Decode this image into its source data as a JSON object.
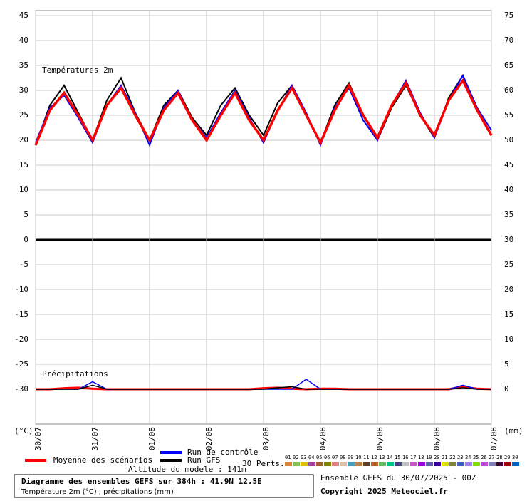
{
  "chart_data": {
    "type": "line",
    "temp_label": "Températures 2m",
    "precip_label": "Précipitations",
    "ylabel": "(°C)",
    "y2label": "(mm)",
    "xlim": [
      0,
      8
    ],
    "xticks": [
      {
        "value": 0,
        "label": "30/07"
      },
      {
        "value": 1,
        "label": "31/07"
      },
      {
        "value": 2,
        "label": "01/08"
      },
      {
        "value": 3,
        "label": "02/08"
      },
      {
        "value": 4,
        "label": "03/08"
      },
      {
        "value": 5,
        "label": "04/08"
      },
      {
        "value": 6,
        "label": "05/08"
      },
      {
        "value": 7,
        "label": "06/08"
      },
      {
        "value": 8,
        "label": "07/08"
      }
    ],
    "ylim": [
      -37,
      46
    ],
    "yticks": [
      45,
      40,
      35,
      30,
      25,
      20,
      15,
      10,
      5,
      0,
      -5,
      -10,
      -15,
      -20,
      -25,
      -30
    ],
    "y2lim": [
      -7,
      76
    ],
    "y2ticks": [
      75,
      70,
      65,
      60,
      55,
      50,
      45,
      40,
      35,
      30,
      25,
      20,
      15,
      10,
      5,
      0
    ],
    "grid": true,
    "x": [
      0,
      0.25,
      0.5,
      0.75,
      1,
      1.25,
      1.5,
      1.75,
      2,
      2.25,
      2.5,
      2.75,
      3,
      3.25,
      3.5,
      3.75,
      4,
      4.25,
      4.5,
      4.75,
      5,
      5.25,
      5.5,
      5.75,
      6,
      6.25,
      6.5,
      6.75,
      7,
      7.25,
      7.5,
      7.75,
      8
    ],
    "series": [
      {
        "name": "Moyenne des scénarios",
        "color": "#ff0000",
        "values": [
          19,
          26,
          29.5,
          25,
          20,
          27,
          30.5,
          25,
          20,
          26,
          29.5,
          24,
          20,
          25,
          29.5,
          24,
          20,
          26,
          30.5,
          25,
          19.5,
          26,
          31,
          25,
          20.5,
          27,
          31.5,
          25,
          21,
          28,
          32,
          26,
          21
        ]
      },
      {
        "name": "Run de contrôle",
        "color": "#0000ff",
        "values": [
          19.5,
          26.5,
          29,
          24.5,
          19.5,
          27,
          31,
          25.5,
          19,
          26.5,
          30,
          24,
          20.5,
          25.5,
          30,
          24.5,
          19.5,
          26,
          31,
          25.5,
          19,
          26.5,
          30.5,
          24,
          20,
          27,
          32,
          25.5,
          20.5,
          28,
          33,
          26.5,
          22
        ]
      },
      {
        "name": "Run GFS",
        "color": "#000000",
        "values": [
          19,
          27,
          31,
          25.5,
          20,
          28,
          32.5,
          25.5,
          20,
          27,
          30,
          24.5,
          21,
          27,
          30.5,
          25,
          21,
          27.5,
          31,
          25,
          19.5,
          27,
          31.5,
          25,
          20,
          26.5,
          31,
          25,
          20.5,
          28.5,
          33,
          26,
          21
        ]
      }
    ],
    "precip": [
      {
        "color": "#ff0000",
        "axis": "y2",
        "values": [
          0,
          0,
          0.2,
          0.3,
          0.1,
          0,
          0,
          0,
          0,
          0,
          0,
          0,
          0,
          0,
          0,
          0,
          0.2,
          0.3,
          0.1,
          0,
          0.1,
          0.1,
          0,
          0,
          0,
          0,
          0,
          0,
          0,
          0,
          0.5,
          0.1,
          0
        ]
      },
      {
        "color": "#0000ff",
        "axis": "y2",
        "values": [
          0,
          0,
          0,
          0,
          1.5,
          0,
          0,
          0,
          0,
          0,
          0,
          0,
          0,
          0,
          0,
          0,
          0,
          0,
          0,
          2,
          0,
          0,
          0,
          0,
          0,
          0,
          0,
          0,
          0,
          0,
          0.8,
          0,
          0
        ]
      },
      {
        "color": "#000000",
        "axis": "y2",
        "values": [
          0,
          0,
          0,
          0,
          0.8,
          0,
          0,
          0,
          0,
          0,
          0,
          0,
          0,
          0,
          0,
          0,
          0,
          0.3,
          0.5,
          0,
          0,
          0,
          0,
          0,
          0,
          0,
          0,
          0,
          0,
          0,
          0.3,
          0,
          0
        ]
      }
    ],
    "perts_label": "30 Perts.",
    "perts": [
      {
        "name": "01",
        "color": "#e0803c"
      },
      {
        "name": "02",
        "color": "#80c060"
      },
      {
        "name": "03",
        "color": "#e0c000"
      },
      {
        "name": "04",
        "color": "#a040a0"
      },
      {
        "name": "05",
        "color": "#a06030"
      },
      {
        "name": "06",
        "color": "#808000"
      },
      {
        "name": "07",
        "color": "#e08080"
      },
      {
        "name": "08",
        "color": "#e0c0a0"
      },
      {
        "name": "09",
        "color": "#40a0c0"
      },
      {
        "name": "10",
        "color": "#c08040"
      },
      {
        "name": "11",
        "color": "#604020"
      },
      {
        "name": "12",
        "color": "#c06020"
      },
      {
        "name": "13",
        "color": "#60c060"
      },
      {
        "name": "14",
        "color": "#00c080"
      },
      {
        "name": "15",
        "color": "#404080"
      },
      {
        "name": "16",
        "color": "#c0c0c0"
      },
      {
        "name": "17",
        "color": "#c060c0"
      },
      {
        "name": "18",
        "color": "#a000e0"
      },
      {
        "name": "19",
        "color": "#6060a0"
      },
      {
        "name": "20",
        "color": "#4000a0"
      },
      {
        "name": "21",
        "color": "#e0e000"
      },
      {
        "name": "22",
        "color": "#808040"
      },
      {
        "name": "23",
        "color": "#4060c0"
      },
      {
        "name": "24",
        "color": "#a080e0"
      },
      {
        "name": "25",
        "color": "#80e000"
      },
      {
        "name": "26",
        "color": "#c040e0"
      },
      {
        "name": "27",
        "color": "#8080c0"
      },
      {
        "name": "28",
        "color": "#400040"
      },
      {
        "name": "29",
        "color": "#a00000"
      },
      {
        "name": "30",
        "color": "#0060c0"
      }
    ],
    "altitude": "Altitude du modele : 141m",
    "title": "Diagramme des ensembles GEFS sur 384h : 41.9N 12.5E",
    "subtitle": "Température 2m (°C) , précipitations (mm)",
    "run": "Ensemble GEFS du 30/07/2025 - 00Z",
    "copyright": "Copyright 2025 Meteociel.fr"
  }
}
